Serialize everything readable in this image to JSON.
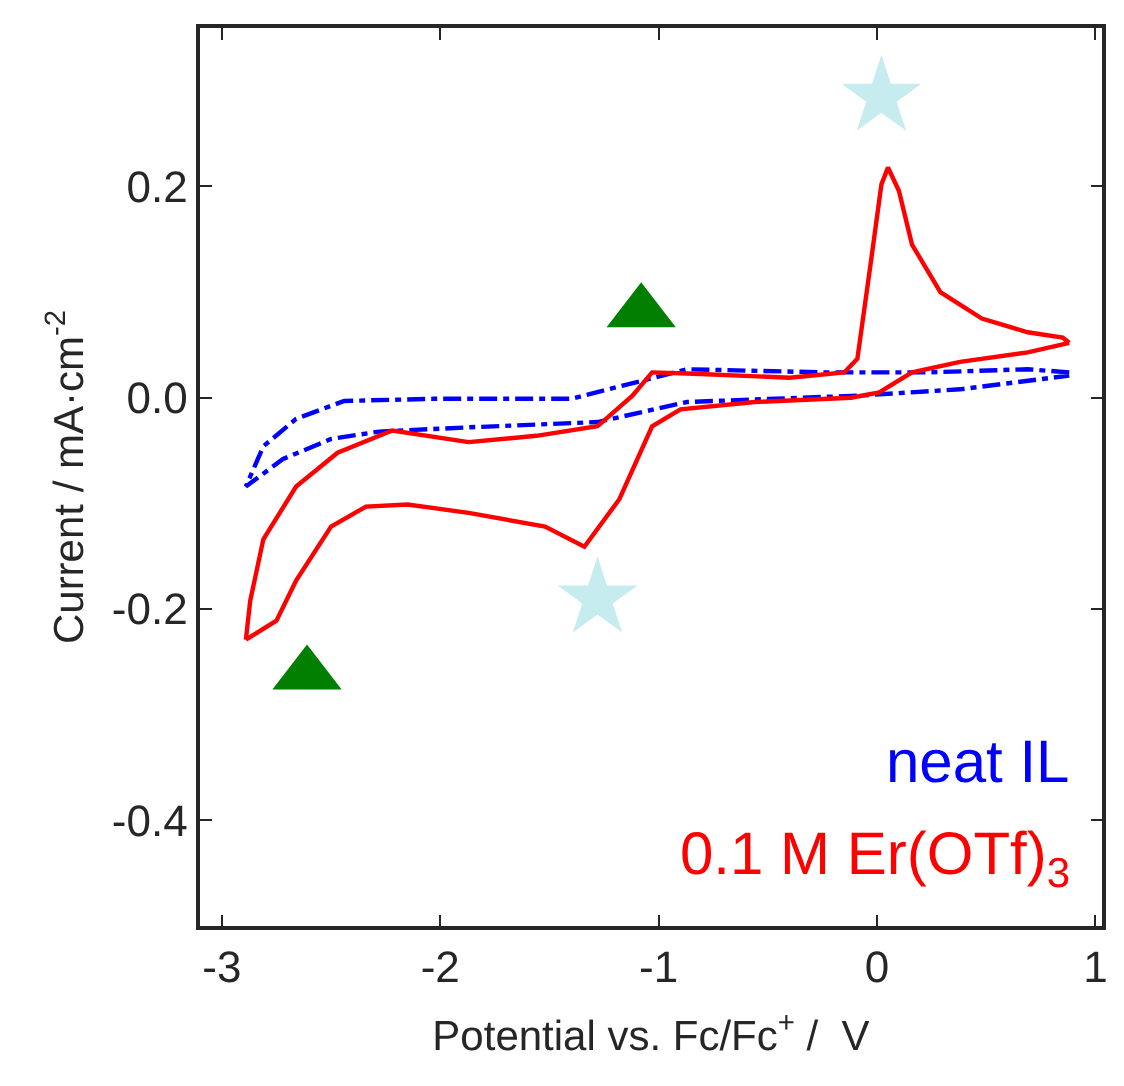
{
  "chart_data": {
    "type": "line",
    "xlabel": "Potential vs. Fc/Fc$^{+}$ /  V",
    "ylabel": "Current / mA·cm$^{-2}$",
    "xlim": [
      -3.1,
      1.03
    ],
    "ylim": [
      -0.5,
      0.35
    ],
    "xticks": [
      -3,
      -2,
      -1,
      0,
      1
    ],
    "yticks": [
      {
        "value": -0.4,
        "label": "-0.4"
      },
      {
        "value": -0.2,
        "label": "-0.2"
      },
      {
        "value": 0,
        "label": "0.0"
      },
      {
        "value": 0.2,
        "label": "0.2"
      }
    ],
    "legend": "bottom right",
    "series": [
      {
        "name": "neat IL",
        "color": "#0000ff",
        "line_style": "dashdot",
        "x": [
          0.88,
          0.69,
          0.23,
          -0.24,
          -0.87,
          -1.4,
          -2.03,
          -2.44,
          -2.66,
          -2.81,
          -2.89,
          -2.72,
          -2.5,
          -2.28,
          -1.87,
          -1.28,
          -0.87,
          -0.09,
          0.38,
          0.88
        ],
        "values": [
          0.024,
          0.027,
          0.024,
          0.024,
          0.027,
          -0.001,
          -0.001,
          -0.003,
          -0.02,
          -0.046,
          -0.084,
          -0.058,
          -0.039,
          -0.032,
          -0.028,
          -0.023,
          -0.004,
          0.002,
          0.008,
          0.021
        ]
      },
      {
        "name": "0.1 M Er(OTf)$_{3}$",
        "color": "#ff0000",
        "line_style": "solid",
        "x": [
          0.88,
          0.69,
          0.38,
          0.16,
          0.01,
          -0.12,
          -0.56,
          -0.9,
          -1.03,
          -1.18,
          -1.34,
          -1.52,
          -1.87,
          -2.15,
          -2.34,
          -2.5,
          -2.66,
          -2.75,
          -2.89
        ],
        "values": [
          0.052,
          0.043,
          0.034,
          0.024,
          0.005,
          0.0,
          -0.004,
          -0.011,
          -0.027,
          -0.096,
          -0.141,
          -0.122,
          -0.109,
          -0.101,
          -0.103,
          -0.122,
          -0.173,
          -0.211,
          -0.229
        ]
      },
      {
        "color": "#ff0000",
        "line_style": "solid",
        "x": [
          -2.89,
          -2.87,
          -2.81,
          -2.66,
          -2.47,
          -2.22,
          -1.87,
          -1.56,
          -1.28,
          -1.12,
          -1.03,
          -0.87,
          -0.4,
          -0.15,
          -0.09,
          -0.03,
          0.02,
          0.05,
          0.1,
          0.16,
          0.29,
          0.48,
          0.69,
          0.85,
          0.88
        ],
        "values": [
          -0.229,
          -0.192,
          -0.134,
          -0.084,
          -0.052,
          -0.031,
          -0.042,
          -0.036,
          -0.027,
          0.002,
          0.024,
          0.023,
          0.019,
          0.024,
          0.037,
          0.126,
          0.202,
          0.218,
          0.196,
          0.145,
          0.1,
          0.075,
          0.062,
          0.057,
          0.052
        ]
      },
      {
        "type": "scatter",
        "marker": "triangle",
        "color": "#007f00",
        "x": [
          -1.08,
          -2.61
        ],
        "values": [
          0.081,
          -0.262
        ]
      },
      {
        "type": "scatter",
        "marker": "star",
        "color": "#c6ecf0",
        "x": [
          0.02,
          -1.28
        ],
        "values": [
          0.285,
          -0.19
        ]
      }
    ]
  }
}
